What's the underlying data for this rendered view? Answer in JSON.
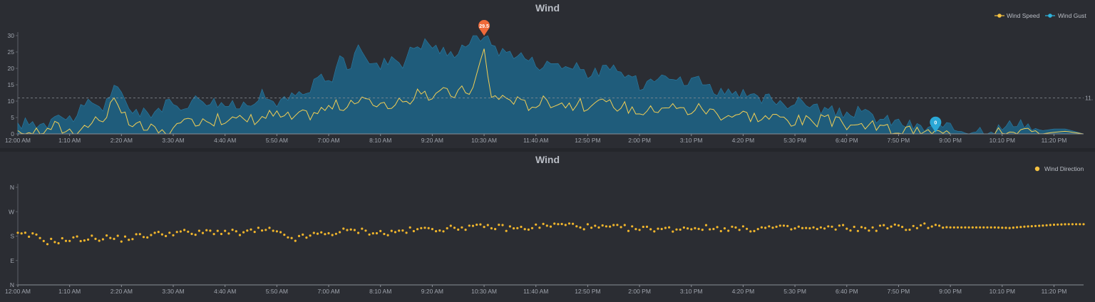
{
  "chart_data": [
    {
      "type": "area",
      "title": "Wind",
      "legend": [
        {
          "name": "Wind Speed",
          "color": "#f5c242"
        },
        {
          "name": "Wind Gust",
          "color": "#2eb3dd"
        }
      ],
      "legend_position": "top-right",
      "y_ticks": [
        "0",
        "5",
        "10",
        "15",
        "20",
        "25",
        "30"
      ],
      "ylim": [
        0,
        30
      ],
      "x_ticks": [
        "12:00 AM",
        "1:10 AM",
        "2:20 AM",
        "3:30 AM",
        "4:40 AM",
        "5:50 AM",
        "7:00 AM",
        "8:10 AM",
        "9:20 AM",
        "10:30 AM",
        "11:40 AM",
        "12:50 PM",
        "2:00 PM",
        "3:10 PM",
        "4:20 PM",
        "5:30 PM",
        "6:40 PM",
        "7:50 PM",
        "9:00 PM",
        "10:10 PM",
        "11:20 PM"
      ],
      "x_range_minutes": [
        0,
        1440
      ],
      "reference_line": {
        "value": 11,
        "label": "11."
      },
      "max_marker": {
        "label": "29.5",
        "x_minutes": 630,
        "value": 29.5
      },
      "min_marker": {
        "label": "0",
        "x_minutes": 1240,
        "value": 0
      },
      "gust_anchor_hours": [
        [
          0,
          3.3
        ],
        [
          0.5,
          3.3
        ],
        [
          1,
          3.3
        ],
        [
          1.3,
          8
        ],
        [
          1.6,
          4
        ],
        [
          2,
          6
        ],
        [
          2.5,
          10
        ],
        [
          2.9,
          8
        ],
        [
          3.2,
          14
        ],
        [
          3.5,
          12
        ],
        [
          3.8,
          8
        ],
        [
          4.2,
          6
        ],
        [
          4.6,
          7
        ],
        [
          5,
          9
        ],
        [
          5.4,
          8
        ],
        [
          5.8,
          10
        ],
        [
          6.2,
          11
        ],
        [
          6.6,
          10
        ],
        [
          7,
          9
        ],
        [
          7.4,
          8
        ],
        [
          7.8,
          10
        ],
        [
          8.2,
          12
        ],
        [
          8.6,
          10
        ],
        [
          9,
          10
        ],
        [
          9.4,
          12
        ],
        [
          9.8,
          12
        ],
        [
          10.2,
          18
        ],
        [
          10.5,
          15
        ],
        [
          10.9,
          24
        ],
        [
          11.2,
          20
        ],
        [
          11.6,
          27
        ],
        [
          11.9,
          22
        ],
        [
          12.2,
          20
        ],
        [
          12.6,
          24
        ],
        [
          13,
          22
        ],
        [
          13.4,
          27
        ],
        [
          13.8,
          28
        ],
        [
          14.2,
          26
        ],
        [
          14.6,
          24
        ],
        [
          15,
          27
        ],
        [
          15.4,
          29
        ],
        [
          15.7,
          29.5
        ],
        [
          16,
          28
        ],
        [
          16.3,
          25
        ],
        [
          16.7,
          25
        ],
        [
          17,
          24
        ],
        [
          17.4,
          22
        ],
        [
          17.8,
          21
        ],
        [
          18.2,
          22
        ],
        [
          18.6,
          20
        ],
        [
          19,
          20
        ],
        [
          19.4,
          18
        ],
        [
          19.8,
          20
        ],
        [
          20.2,
          19
        ],
        [
          20.6,
          18
        ],
        [
          21,
          15
        ],
        [
          21.4,
          17
        ],
        [
          21.8,
          20
        ],
        [
          22.2,
          17
        ],
        [
          22.6,
          15
        ],
        [
          23,
          18
        ],
        [
          23.4,
          14
        ],
        [
          23.8,
          13
        ],
        [
          24.2,
          11
        ],
        [
          24.6,
          12
        ],
        [
          25,
          10
        ],
        [
          25.4,
          11
        ],
        [
          25.8,
          10
        ],
        [
          26.2,
          9
        ],
        [
          26.6,
          10
        ],
        [
          27,
          8
        ],
        [
          27.4,
          7
        ],
        [
          27.8,
          6
        ],
        [
          28.2,
          7
        ],
        [
          28.6,
          6
        ],
        [
          29,
          5
        ],
        [
          29.4,
          4
        ],
        [
          29.8,
          3.5
        ],
        [
          30.2,
          2.5
        ],
        [
          30.6,
          1.5
        ],
        [
          30.9,
          2.5
        ],
        [
          31.2,
          1.5
        ],
        [
          31.6,
          1.5
        ],
        [
          31.9,
          1.5
        ],
        [
          32.3,
          1.5
        ],
        [
          32.6,
          1.5
        ],
        [
          33,
          1.5
        ],
        [
          33.4,
          2
        ],
        [
          33.8,
          4.5
        ],
        [
          34.2,
          2
        ],
        [
          34.6,
          1
        ],
        [
          35,
          1.5
        ],
        [
          35.4,
          1.5
        ],
        [
          36,
          0
        ]
      ],
      "speed_anchor_hours": [
        [
          0,
          1
        ],
        [
          0.3,
          0
        ],
        [
          0.6,
          1.5
        ],
        [
          0.9,
          1
        ],
        [
          1.2,
          2.5
        ],
        [
          1.5,
          1.5
        ],
        [
          1.8,
          1
        ],
        [
          2.2,
          2
        ],
        [
          2.6,
          4
        ],
        [
          2.9,
          5
        ],
        [
          3.2,
          10
        ],
        [
          3.5,
          6
        ],
        [
          3.8,
          3
        ],
        [
          4.2,
          2
        ],
        [
          4.6,
          1
        ],
        [
          5,
          0
        ],
        [
          5.4,
          2
        ],
        [
          5.8,
          3
        ],
        [
          6.2,
          5
        ],
        [
          6.6,
          4
        ],
        [
          7,
          5
        ],
        [
          7.4,
          4
        ],
        [
          7.8,
          4.5
        ],
        [
          8.2,
          5
        ],
        [
          8.6,
          6
        ],
        [
          9,
          5
        ],
        [
          9.4,
          5
        ],
        [
          9.8,
          6
        ],
        [
          10.2,
          7
        ],
        [
          10.5,
          8
        ],
        [
          10.9,
          9
        ],
        [
          11.2,
          8
        ],
        [
          11.6,
          11
        ],
        [
          11.9,
          9
        ],
        [
          12.2,
          10
        ],
        [
          12.6,
          9
        ],
        [
          13,
          9
        ],
        [
          13.4,
          12
        ],
        [
          13.8,
          11
        ],
        [
          14.2,
          13
        ],
        [
          14.6,
          12
        ],
        [
          15,
          13
        ],
        [
          15.4,
          14
        ],
        [
          15.7,
          25
        ],
        [
          16,
          12
        ],
        [
          16.3,
          11
        ],
        [
          16.7,
          11
        ],
        [
          17,
          9
        ],
        [
          17.4,
          9
        ],
        [
          17.8,
          10
        ],
        [
          18.2,
          10
        ],
        [
          18.6,
          9
        ],
        [
          19,
          9
        ],
        [
          19.4,
          8
        ],
        [
          19.8,
          9
        ],
        [
          20.2,
          9
        ],
        [
          20.6,
          8
        ],
        [
          21,
          7
        ],
        [
          21.4,
          7
        ],
        [
          21.8,
          9
        ],
        [
          22.2,
          8
        ],
        [
          22.6,
          7
        ],
        [
          23,
          8
        ],
        [
          23.4,
          7
        ],
        [
          23.8,
          6
        ],
        [
          24.2,
          6
        ],
        [
          24.6,
          6
        ],
        [
          25,
          5
        ],
        [
          25.4,
          5
        ],
        [
          25.8,
          5
        ],
        [
          26.2,
          4
        ],
        [
          26.6,
          4
        ],
        [
          27,
          4
        ],
        [
          27.4,
          4
        ],
        [
          27.8,
          3
        ],
        [
          28.2,
          3
        ],
        [
          28.6,
          2.5
        ],
        [
          29,
          2
        ],
        [
          29.4,
          1.5
        ],
        [
          29.8,
          1
        ],
        [
          30.2,
          0.5
        ],
        [
          30.6,
          0
        ],
        [
          30.9,
          0.5
        ],
        [
          31.2,
          0
        ],
        [
          31.6,
          0
        ],
        [
          32,
          0
        ],
        [
          32.4,
          0
        ],
        [
          32.8,
          0
        ],
        [
          33.2,
          0.3
        ],
        [
          33.8,
          1
        ],
        [
          34.2,
          0.3
        ],
        [
          34.6,
          0
        ],
        [
          35,
          0.5
        ],
        [
          35.4,
          0.8
        ],
        [
          36,
          0
        ]
      ]
    },
    {
      "type": "scatter",
      "title": "Wind",
      "legend": [
        {
          "name": "Wind Direction",
          "color": "#f5c242"
        }
      ],
      "legend_position": "top-right",
      "y_ticks": [
        "N",
        "E",
        "S",
        "W",
        "N"
      ],
      "y_tick_degrees": [
        0,
        90,
        180,
        270,
        360
      ],
      "ylim": [
        0,
        360
      ],
      "x_ticks": [
        "12:00 AM",
        "1:10 AM",
        "2:20 AM",
        "3:30 AM",
        "4:40 AM",
        "5:50 AM",
        "7:00 AM",
        "8:10 AM",
        "9:20 AM",
        "10:30 AM",
        "11:40 AM",
        "12:50 PM",
        "2:00 PM",
        "3:10 PM",
        "4:20 PM",
        "5:30 PM",
        "6:40 PM",
        "7:50 PM",
        "9:00 PM",
        "10:10 PM",
        "11:20 PM"
      ],
      "x_range_minutes": [
        0,
        1440
      ],
      "direction_anchor_hours": [
        [
          0,
          185
        ],
        [
          0.6,
          180
        ],
        [
          1,
          160
        ],
        [
          1.6,
          165
        ],
        [
          2,
          170
        ],
        [
          2.6,
          172
        ],
        [
          3,
          175
        ],
        [
          3.5,
          170
        ],
        [
          4,
          178
        ],
        [
          4.5,
          185
        ],
        [
          5,
          190
        ],
        [
          5.5,
          195
        ],
        [
          6,
          188
        ],
        [
          6.5,
          198
        ],
        [
          7,
          195
        ],
        [
          7.5,
          190
        ],
        [
          8,
          200
        ],
        [
          8.5,
          202
        ],
        [
          9,
          180
        ],
        [
          9.4,
          170
        ],
        [
          10,
          185
        ],
        [
          10.5,
          190
        ],
        [
          11,
          198
        ],
        [
          11.5,
          200
        ],
        [
          12,
          195
        ],
        [
          12.5,
          190
        ],
        [
          13,
          200
        ],
        [
          13.5,
          202
        ],
        [
          14,
          210
        ],
        [
          14.5,
          205
        ],
        [
          15,
          215
        ],
        [
          15.5,
          212
        ],
        [
          16,
          215
        ],
        [
          16.5,
          210
        ],
        [
          17,
          208
        ],
        [
          17.5,
          215
        ],
        [
          18,
          220
        ],
        [
          18.5,
          222
        ],
        [
          19,
          218
        ],
        [
          19.5,
          210
        ],
        [
          20,
          212
        ],
        [
          20.5,
          210
        ],
        [
          21,
          205
        ],
        [
          21.5,
          208
        ],
        [
          22,
          205
        ],
        [
          22.5,
          210
        ],
        [
          23,
          212
        ],
        [
          23.5,
          208
        ],
        [
          24,
          210
        ],
        [
          24.5,
          205
        ],
        [
          25,
          208
        ],
        [
          25.5,
          212
        ],
        [
          26,
          208
        ],
        [
          26.5,
          210
        ],
        [
          27,
          206
        ],
        [
          27.5,
          210
        ],
        [
          28,
          212
        ],
        [
          28.5,
          205
        ],
        [
          29,
          210
        ],
        [
          29.5,
          215
        ],
        [
          30,
          210
        ],
        [
          30.5,
          220
        ],
        [
          31,
          215
        ],
        [
          31.5,
          212
        ],
        [
          32,
          212
        ],
        [
          32.5,
          212
        ],
        [
          33,
          212
        ],
        [
          33.5,
          210
        ],
        [
          34,
          215
        ],
        [
          34.5,
          218
        ],
        [
          35,
          222
        ],
        [
          35.5,
          224
        ],
        [
          36,
          224
        ]
      ]
    }
  ]
}
